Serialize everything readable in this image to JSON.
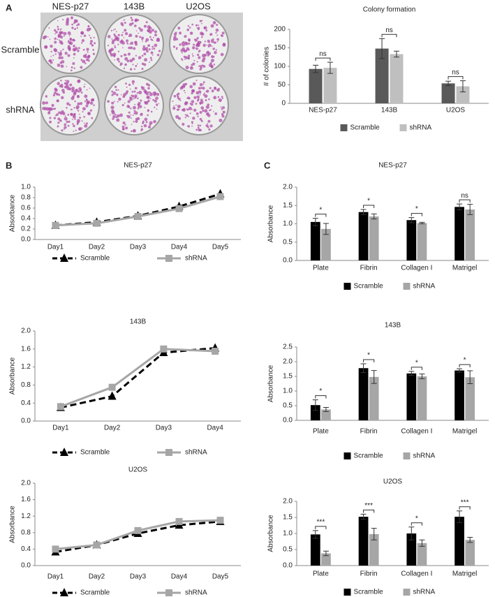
{
  "panel_labels": [
    "A",
    "B",
    "C"
  ],
  "photos": {
    "columns": [
      "NES-p27",
      "143B",
      "U2OS"
    ],
    "rows": [
      "Scramble",
      "shRNA"
    ]
  },
  "chart_data": [
    {
      "type": "bar",
      "title": "Colony formation",
      "y_label": "# of colonies",
      "categories": [
        "NES-p27",
        "143B",
        "U2OS"
      ],
      "series": [
        {
          "name": "Scramble",
          "color": "#595959",
          "values": [
            93,
            148,
            54
          ],
          "errors": [
            10,
            27,
            6
          ]
        },
        {
          "name": "shRNA",
          "color": "#bfbfbf",
          "values": [
            96,
            133,
            46
          ],
          "errors": [
            15,
            8,
            15
          ]
        }
      ],
      "significance": [
        "ns",
        "ns",
        "ns"
      ],
      "ylim": [
        0,
        200
      ],
      "yticks": [
        0,
        50,
        100,
        150,
        200
      ]
    },
    {
      "type": "line",
      "title": "NES-p27",
      "y_label": "Absorbance",
      "categories": [
        "Day1",
        "Day2",
        "Day3",
        "Day4",
        "Day5"
      ],
      "series": [
        {
          "name": "Scramble",
          "color": "#000000",
          "values": [
            0.27,
            0.33,
            0.45,
            0.63,
            0.87
          ]
        },
        {
          "name": "shRNA",
          "color": "#a6a6a6",
          "values": [
            0.27,
            0.31,
            0.44,
            0.59,
            0.82
          ]
        }
      ],
      "ylim": [
        0,
        1
      ],
      "yticks": [
        {
          "value": 0,
          "label": "0.0"
        },
        0.2,
        0.4,
        0.6,
        0.8,
        {
          "value": 1,
          "label": "1.0"
        }
      ]
    },
    {
      "type": "line",
      "title": "143B",
      "y_label": "Absorbance",
      "categories": [
        "Day1",
        "Day2",
        "Day3",
        "Day4"
      ],
      "series": [
        {
          "name": "Scramble",
          "color": "#000000",
          "values": [
            0.3,
            0.55,
            1.52,
            1.62
          ]
        },
        {
          "name": "shRNA",
          "color": "#a6a6a6",
          "values": [
            0.32,
            0.75,
            1.6,
            1.55
          ]
        }
      ],
      "ylim": [
        0,
        2
      ],
      "yticks": [
        {
          "value": 0,
          "label": "0.0"
        },
        0.4,
        0.8,
        1.2,
        1.6,
        {
          "value": 2,
          "label": "2.0"
        }
      ]
    },
    {
      "type": "line",
      "title": "U2OS",
      "y_label": "Absorbance",
      "categories": [
        "Day1",
        "Day2",
        "Day3",
        "Day4",
        "Day5"
      ],
      "series": [
        {
          "name": "Scramble",
          "color": "#000000",
          "values": [
            0.33,
            0.5,
            0.78,
            0.98,
            1.07
          ]
        },
        {
          "name": "shRNA",
          "color": "#a6a6a6",
          "values": [
            0.4,
            0.5,
            0.85,
            1.07,
            1.1
          ]
        }
      ],
      "ylim": [
        0,
        2
      ],
      "yticks": [
        {
          "value": 0,
          "label": "0.0"
        },
        0.4,
        0.8,
        1.2,
        1.6,
        {
          "value": 2,
          "label": "2.0"
        }
      ]
    },
    {
      "type": "bar",
      "title": "NES-p27",
      "y_label": "Absorbance",
      "categories": [
        "Plate",
        "Fibrin",
        "Collagen I",
        "Matrigel"
      ],
      "series": [
        {
          "name": "Scramble",
          "color": "#000000",
          "values": [
            1.05,
            1.32,
            1.1,
            1.46
          ],
          "errors": [
            0.1,
            0.07,
            0.07,
            0.08
          ]
        },
        {
          "name": "shRNA",
          "color": "#a6a6a6",
          "values": [
            0.86,
            1.2,
            1.02,
            1.39
          ],
          "errors": [
            0.15,
            0.07,
            0.02,
            0.14
          ]
        }
      ],
      "significance": [
        "*",
        "*",
        "*",
        "ns"
      ],
      "ylim": [
        0,
        2
      ],
      "yticks": [
        {
          "value": 0,
          "label": "0.0"
        },
        0.5,
        {
          "value": 1,
          "label": "1.0"
        },
        1.5,
        {
          "value": 2,
          "label": "2.0"
        }
      ]
    },
    {
      "type": "bar",
      "title": "143B",
      "y_label": "Absorbance",
      "categories": [
        "Plate",
        "Fibrin",
        "Collagen I",
        "Matrigel"
      ],
      "series": [
        {
          "name": "Scramble",
          "color": "#000000",
          "values": [
            0.52,
            1.78,
            1.6,
            1.7
          ],
          "errors": [
            0.18,
            0.15,
            0.07,
            0.06
          ]
        },
        {
          "name": "shRNA",
          "color": "#a6a6a6",
          "values": [
            0.37,
            1.48,
            1.5,
            1.47
          ],
          "errors": [
            0.07,
            0.22,
            0.08,
            0.22
          ]
        }
      ],
      "significance": [
        "*",
        "*",
        "*",
        "*"
      ],
      "ylim": [
        0,
        2.5
      ],
      "yticks": [
        {
          "value": 0,
          "label": "0.0"
        },
        0.5,
        {
          "value": 1,
          "label": "1.0"
        },
        1.5,
        {
          "value": 2,
          "label": "2.0"
        },
        2.5
      ]
    },
    {
      "type": "bar",
      "title": "U2OS",
      "y_label": "Absorbance",
      "categories": [
        "Plate",
        "Fibrin",
        "Collagen I",
        "Matrigel"
      ],
      "series": [
        {
          "name": "Scramble",
          "color": "#000000",
          "values": [
            0.97,
            1.52,
            1.0,
            1.52
          ],
          "errors": [
            0.12,
            0.08,
            0.2,
            0.18
          ]
        },
        {
          "name": "shRNA",
          "color": "#a6a6a6",
          "values": [
            0.38,
            0.98,
            0.7,
            0.8
          ],
          "errors": [
            0.07,
            0.18,
            0.1,
            0.08
          ]
        }
      ],
      "significance": [
        "***",
        "***",
        "*",
        "***"
      ],
      "ylim": [
        0,
        2
      ],
      "yticks": [
        {
          "value": 0,
          "label": "0.0"
        },
        0.5,
        {
          "value": 1,
          "label": "1.0"
        },
        1.5,
        {
          "value": 2,
          "label": "2.0"
        }
      ]
    }
  ]
}
